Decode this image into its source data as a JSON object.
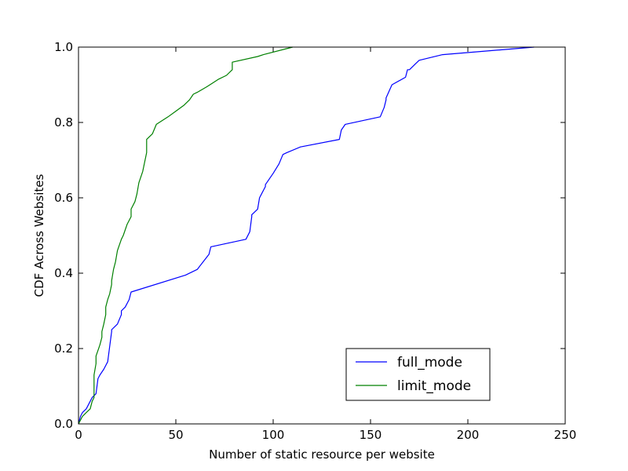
{
  "chart_data": {
    "type": "line",
    "title": "",
    "xlabel": "Number of static resource per website",
    "ylabel": "CDF Across Websites",
    "xlim": [
      0,
      250
    ],
    "ylim": [
      0.0,
      1.0
    ],
    "x_ticks": [
      0,
      50,
      100,
      150,
      200,
      250
    ],
    "x_tick_labels": [
      "0",
      "50",
      "100",
      "150",
      "200",
      "250"
    ],
    "y_ticks": [
      0.0,
      0.2,
      0.4,
      0.6,
      0.8,
      1.0
    ],
    "y_tick_labels": [
      "0.0",
      "0.2",
      "0.4",
      "0.6",
      "0.8",
      "1.0"
    ],
    "grid": false,
    "legend_position": "lower-right",
    "series": [
      {
        "name": "full_mode",
        "color": "#0000ff",
        "x": [
          0,
          1,
          2,
          4,
          6,
          7,
          9,
          10,
          11,
          13,
          15,
          16,
          17,
          17,
          20,
          22,
          22,
          24,
          26,
          27,
          55,
          61,
          64,
          67,
          68,
          86,
          88,
          89,
          89,
          92,
          93,
          94,
          96,
          96,
          100,
          103,
          105,
          107,
          114,
          134,
          135,
          137,
          155,
          157,
          158,
          158,
          161,
          168,
          169,
          170,
          173,
          175,
          187,
          234
        ],
        "y": [
          0.0,
          0.02,
          0.03,
          0.04,
          0.06,
          0.07,
          0.08,
          0.12,
          0.13,
          0.145,
          0.165,
          0.205,
          0.245,
          0.25,
          0.265,
          0.29,
          0.3,
          0.31,
          0.33,
          0.35,
          0.395,
          0.41,
          0.43,
          0.45,
          0.47,
          0.49,
          0.51,
          0.55,
          0.555,
          0.57,
          0.6,
          0.61,
          0.63,
          0.635,
          0.665,
          0.69,
          0.715,
          0.72,
          0.735,
          0.755,
          0.78,
          0.795,
          0.815,
          0.84,
          0.86,
          0.865,
          0.9,
          0.92,
          0.94,
          0.94,
          0.955,
          0.965,
          0.98,
          1.0
        ]
      },
      {
        "name": "limit_mode",
        "color": "#008000",
        "x": [
          0,
          1,
          2,
          4,
          6,
          7,
          8,
          8,
          8,
          9,
          9,
          10,
          11,
          12,
          12,
          13,
          14,
          14,
          15,
          16,
          17,
          17,
          18,
          19,
          20,
          22,
          23,
          25,
          27,
          27,
          29,
          30,
          31,
          33,
          35,
          35,
          38,
          40,
          46,
          50,
          54,
          57,
          59,
          61,
          66,
          69,
          72,
          76,
          79,
          79,
          92,
          95,
          110
        ],
        "y": [
          0.0,
          0.01,
          0.02,
          0.03,
          0.04,
          0.06,
          0.07,
          0.09,
          0.13,
          0.16,
          0.18,
          0.195,
          0.21,
          0.23,
          0.245,
          0.265,
          0.29,
          0.31,
          0.33,
          0.345,
          0.37,
          0.38,
          0.41,
          0.43,
          0.46,
          0.49,
          0.5,
          0.53,
          0.55,
          0.57,
          0.59,
          0.61,
          0.64,
          0.67,
          0.72,
          0.755,
          0.77,
          0.795,
          0.815,
          0.83,
          0.845,
          0.86,
          0.875,
          0.88,
          0.895,
          0.905,
          0.915,
          0.925,
          0.94,
          0.96,
          0.975,
          0.98,
          1.0
        ]
      }
    ]
  }
}
